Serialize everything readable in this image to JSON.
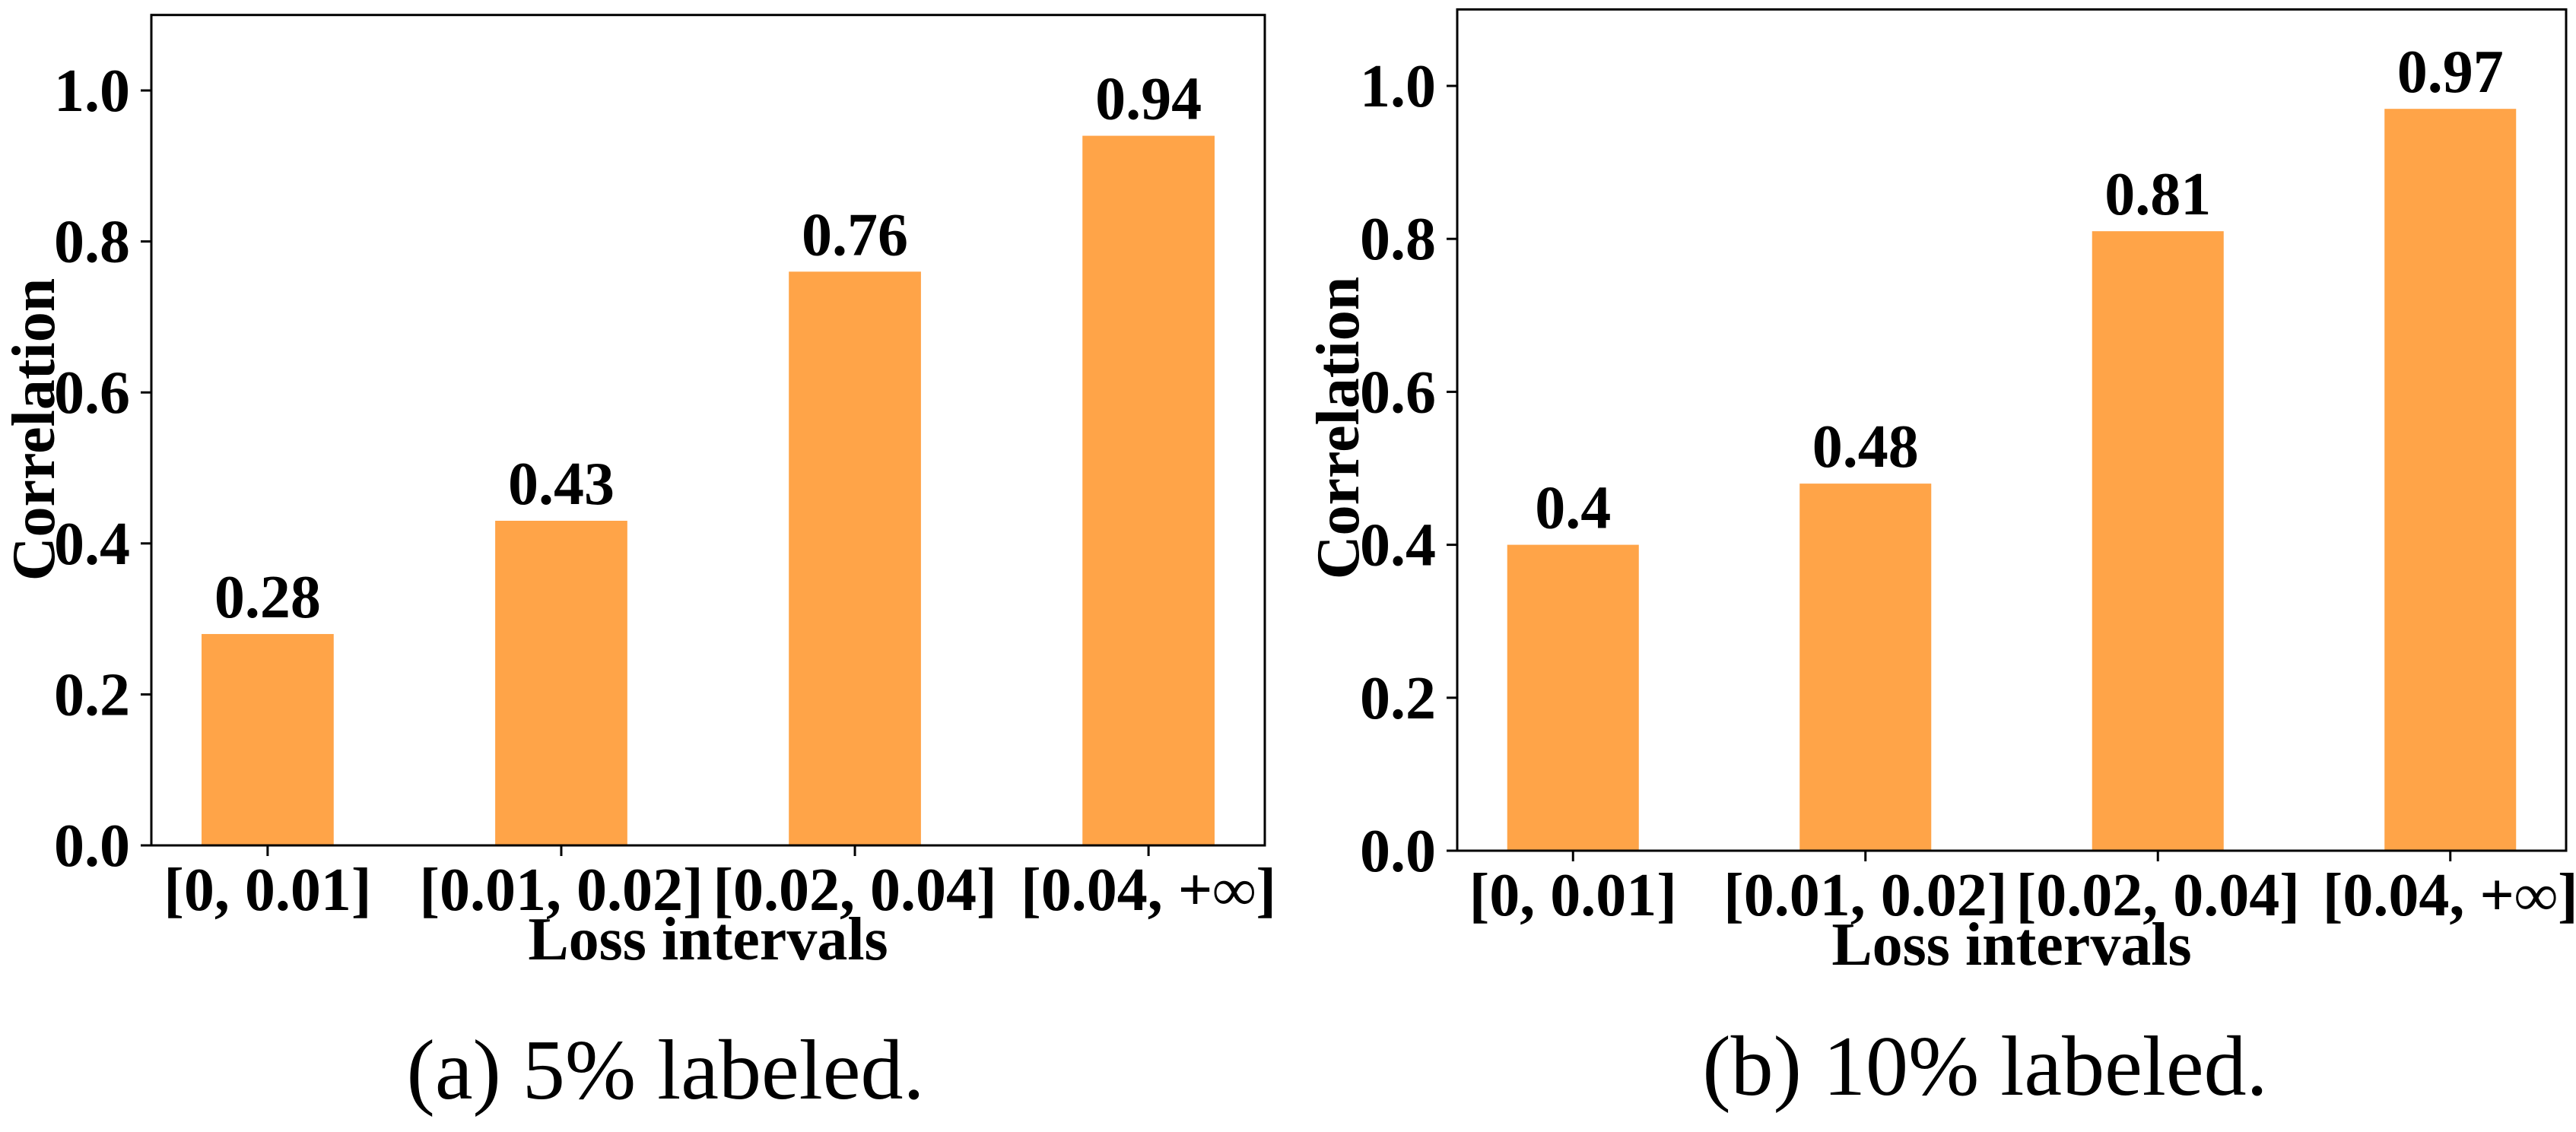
{
  "chart_data": [
    {
      "type": "bar",
      "caption": "(a) 5% labeled.",
      "xlabel": "Loss intervals",
      "ylabel": "Correlation",
      "categories": [
        "[0, 0.01]",
        "[0.01, 0.02]",
        "[0.02, 0.04]",
        "[0.04, +∞]"
      ],
      "values": [
        0.28,
        0.43,
        0.76,
        0.94
      ],
      "value_labels": [
        "0.28",
        "0.43",
        "0.76",
        "0.94"
      ],
      "ylim": [
        0,
        1.1
      ],
      "yticks": [
        "0.0",
        "0.2",
        "0.4",
        "0.6",
        "0.8",
        "1.0"
      ],
      "grid": false,
      "bar_color": "#ffa448"
    },
    {
      "type": "bar",
      "caption": "(b) 10% labeled.",
      "xlabel": "Loss intervals",
      "ylabel": "Correlation",
      "categories": [
        "[0, 0.01]",
        "[0.01, 0.02]",
        "[0.02, 0.04]",
        "[0.04, +∞]"
      ],
      "values": [
        0.4,
        0.48,
        0.81,
        0.97
      ],
      "value_labels": [
        "0.4",
        "0.48",
        "0.81",
        "0.97"
      ],
      "ylim": [
        0,
        1.1
      ],
      "yticks": [
        "0.0",
        "0.2",
        "0.4",
        "0.6",
        "0.8",
        "1.0"
      ],
      "grid": false,
      "bar_color": "#ffa448"
    }
  ]
}
